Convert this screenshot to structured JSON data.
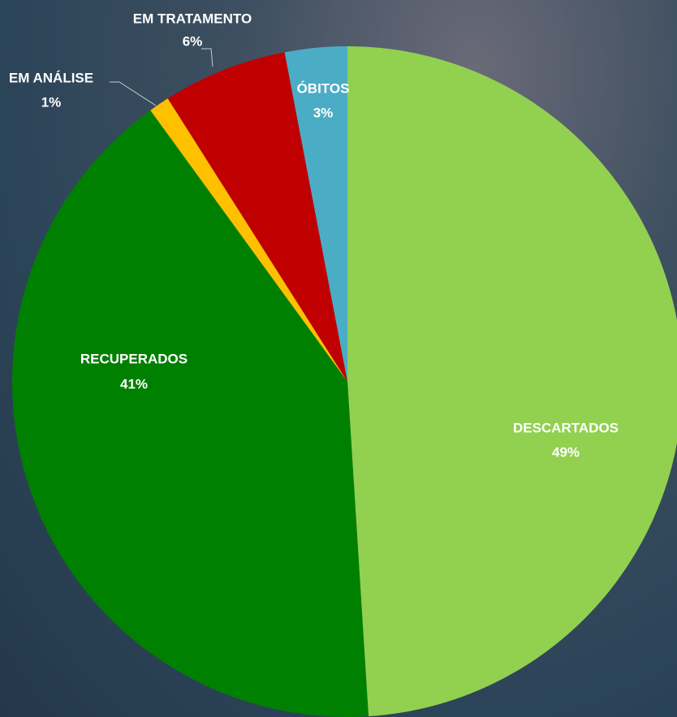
{
  "chart_data": {
    "type": "pie",
    "categories": [
      "DESCARTADOS",
      "RECUPERADOS",
      "EM ANÁLISE",
      "EM TRATAMENTO",
      "ÓBITOS"
    ],
    "values": [
      49,
      41,
      1,
      6,
      3
    ],
    "value_labels": [
      "49%",
      "41%",
      "1%",
      "6%",
      "3%"
    ],
    "colors": [
      "#92d050",
      "#008000",
      "#ffc000",
      "#c00000",
      "#4bacc6"
    ]
  }
}
